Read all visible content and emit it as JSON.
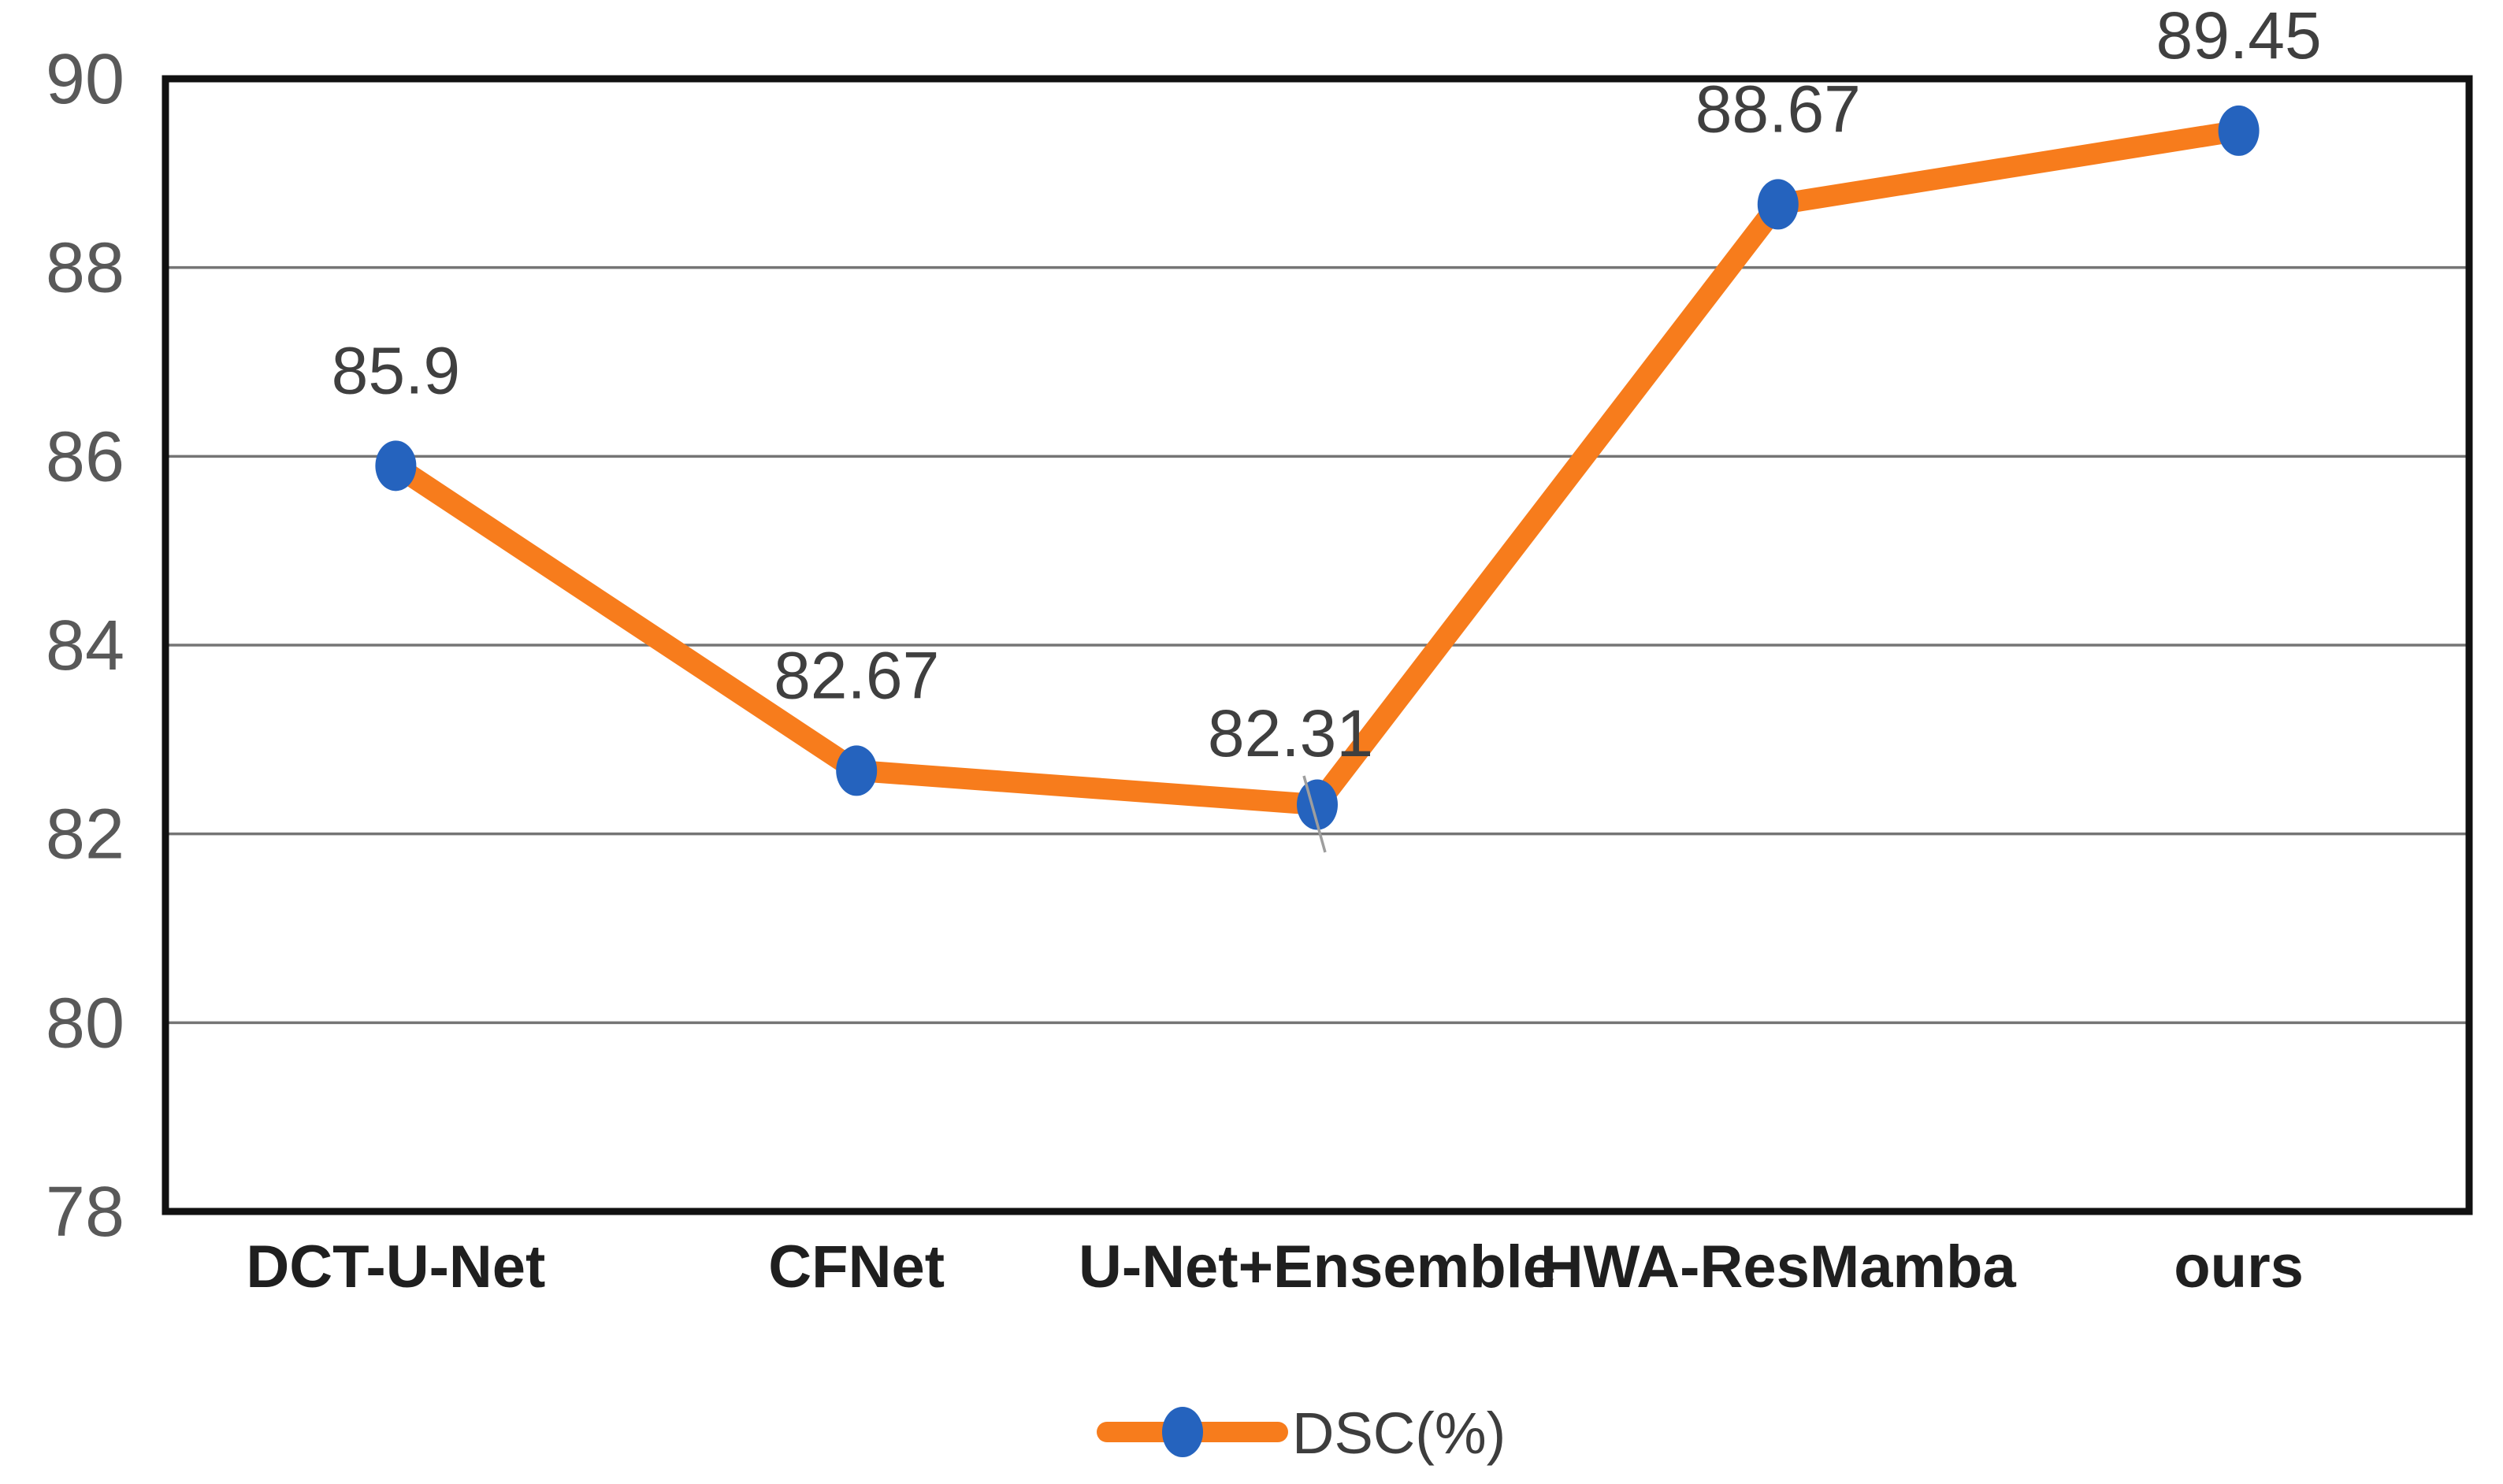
{
  "chart_data": {
    "type": "line",
    "title": "",
    "xlabel": "",
    "ylabel": "",
    "categories": [
      "DCT-U-Net",
      "CFNet",
      "U-Net+Ensemble",
      "HWA-ResMamba",
      "ours"
    ],
    "series": [
      {
        "name": "DSC(%)",
        "values": [
          85.9,
          82.67,
          82.31,
          88.67,
          89.45
        ],
        "point_labels": [
          "85.9",
          "82.67",
          "82.31",
          "88.67",
          "89.45"
        ]
      }
    ],
    "ylim": [
      78,
      90
    ],
    "y_ticks": [
      90,
      88,
      86,
      84,
      82,
      80,
      78
    ],
    "grid": "horizontal-on",
    "legend": {
      "position": "bottom",
      "label": "DSC(%)"
    },
    "colors": {
      "line": "#F77C1C",
      "marker": "#2563BE",
      "gridline": "#757575",
      "plot_border": "#111111",
      "tick_label": "#595959",
      "data_label": "#3F3F3F",
      "category_label": "#1F1F1F",
      "legend_text": "#3D3D3D",
      "leader_line": "#9E9E9E",
      "background": "#FFFFFF"
    }
  }
}
